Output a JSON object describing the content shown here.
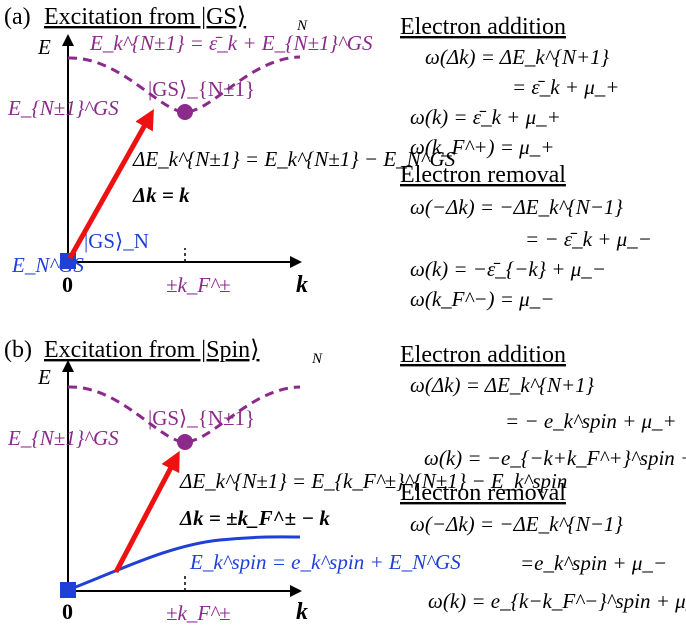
{
  "panel_a": {
    "label": "(a)",
    "title": "Excitation from |GS⟩",
    "title_sub": "N",
    "axis_e": "E",
    "axis_k": "k",
    "origin": "0",
    "dispersion_label": "E_k^{N±1} = ε̄_k + E_{N±1}^GS",
    "energy_label_upper": "E_{N±1}^GS",
    "energy_label_lower": "E_N^GS",
    "state_upper": "|GS⟩_{N±1}",
    "state_lower": "|GS⟩_N",
    "transition_eq1": "ΔE_k^{N±1} = E_k^{N±1} − E_N^GS",
    "transition_eq2": "Δk = k",
    "kf_label": "±k_F^±",
    "right": {
      "addition_title": "Electron addition",
      "addition_eqs": [
        "ω(Δk) = ΔE_k^{N+1}",
        "= ε̄_k + μ_+",
        "ω(k) = ε̄_k + μ_+",
        "ω(k_F^+) = μ_+"
      ],
      "removal_title": "Electron removal",
      "removal_eqs": [
        "ω(−Δk) = −ΔE_k^{N−1}",
        "= − ε̄_k + μ_−",
        "ω(k) = −ε̄_{−k} + μ_−",
        "ω(k_F^−) = μ_−"
      ]
    }
  },
  "panel_b": {
    "label": "(b)",
    "title": "Excitation from |Spin⟩",
    "title_sub": "N",
    "axis_e": "E",
    "axis_k": "k",
    "origin": "0",
    "energy_label_upper": "E_{N±1}^GS",
    "state_upper": "|GS⟩_{N±1}",
    "transition_eq1": "ΔE_k^{N±1} = E_{k_F^±}^{N±1} − E_k^spin",
    "transition_eq2": "Δk = ±k_F^± − k",
    "spin_label": "E_k^spin = e_k^spin + E_N^GS",
    "kf_label": "±k_F^±",
    "right": {
      "addition_title": "Electron addition",
      "addition_eqs": [
        "ω(Δk) = ΔE_k^{N+1}",
        "= − e_k^spin + μ_+",
        "ω(k) = −e_{−k+k_F^+}^spin + μ_+"
      ],
      "removal_title": "Electron removal",
      "removal_eqs": [
        "ω(−Δk) = −ΔE_k^{N−1}",
        "=e_k^spin + μ_−",
        "ω(k) = e_{k−k_F^−}^spin + μ_−"
      ]
    }
  },
  "colors": {
    "purple": "#8b2a8b",
    "blue": "#1f3fd6",
    "red": "#ee1111",
    "black": "#000000"
  }
}
